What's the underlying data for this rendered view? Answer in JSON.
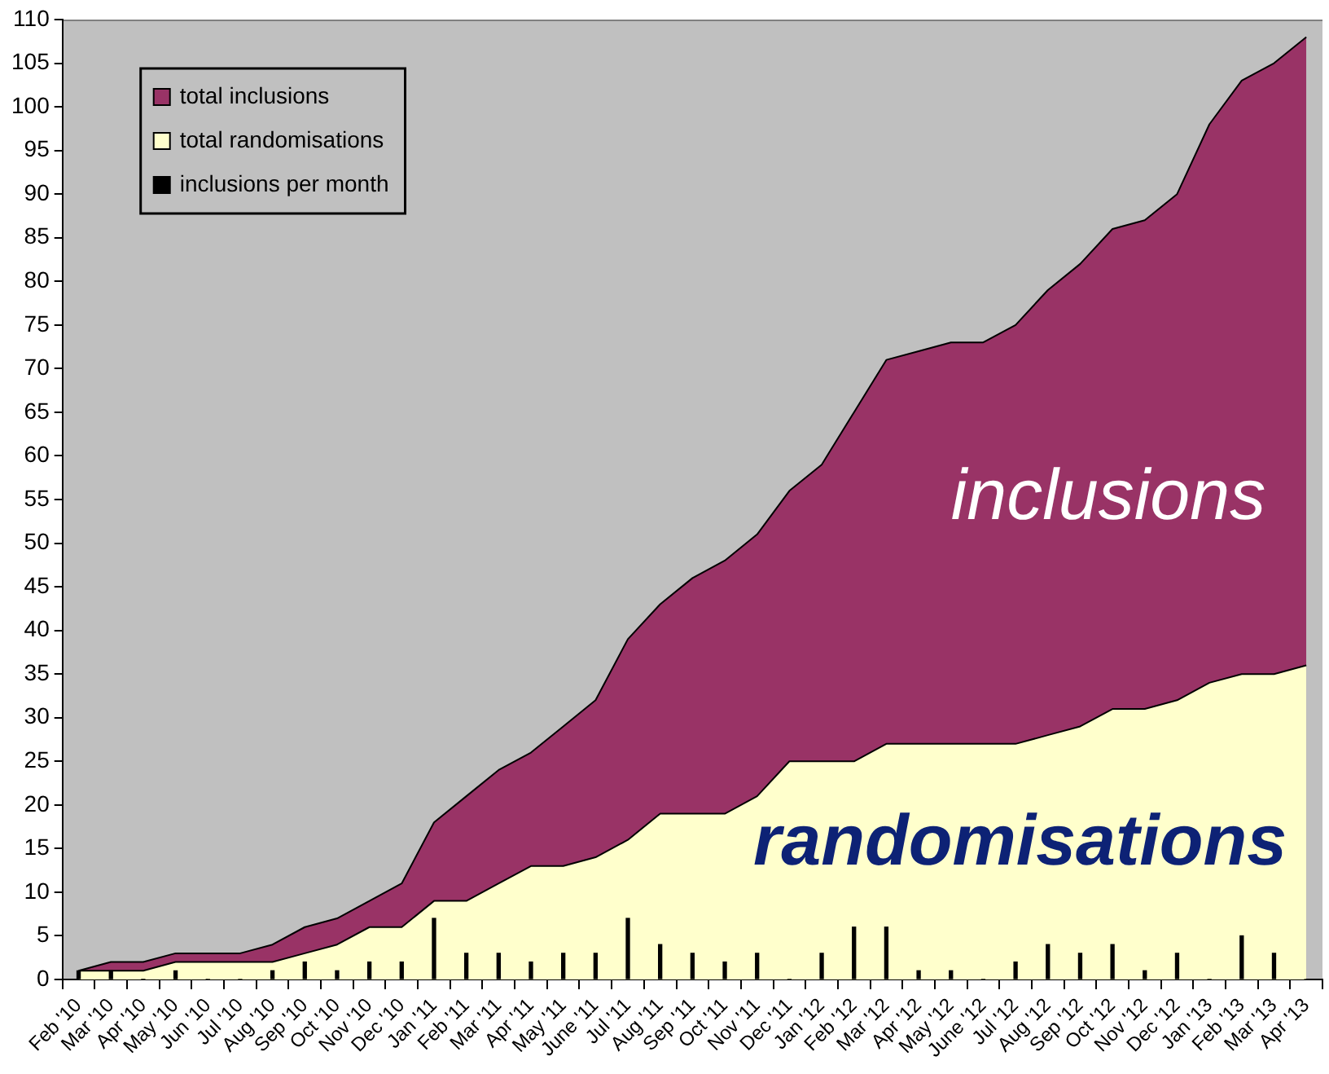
{
  "chart_data": {
    "type": "area",
    "categories": [
      "Feb '10",
      "Mar '10",
      "Apr '10",
      "May '10",
      "Jun '10",
      "Jul '10",
      "Aug '10",
      "Sep '10",
      "Oct '10",
      "Nov '10",
      "Dec '10",
      "Jan '11",
      "Feb '11",
      "Mar '11",
      "Apr '11",
      "May '11",
      "June '11",
      "Jul '11",
      "Aug '11",
      "Sep '11",
      "Oct '11",
      "Nov '11",
      "Dec '11",
      "Jan '12",
      "Feb '12",
      "Mar '12",
      "Apr '12",
      "May '12",
      "June '12",
      "Jul '12",
      "Aug '12",
      "Sep '12",
      "Oct '12",
      "Nov '12",
      "Dec '12",
      "Jan '13",
      "Feb '13",
      "Mar '13",
      "Apr '13"
    ],
    "series": [
      {
        "name": "total inclusions",
        "color": "#993366",
        "values": [
          1,
          2,
          2,
          3,
          3,
          3,
          4,
          6,
          7,
          9,
          11,
          18,
          21,
          24,
          26,
          29,
          32,
          39,
          43,
          46,
          48,
          51,
          56,
          59,
          65,
          71,
          72,
          73,
          73,
          75,
          79,
          82,
          86,
          87,
          90,
          98,
          103,
          105,
          108
        ]
      },
      {
        "name": "total randomisations",
        "color": "#ffffcc",
        "values": [
          1,
          1,
          1,
          2,
          2,
          2,
          2,
          3,
          4,
          6,
          6,
          9,
          9,
          11,
          13,
          13,
          14,
          16,
          19,
          19,
          19,
          21,
          25,
          25,
          25,
          27,
          27,
          27,
          27,
          27,
          28,
          29,
          31,
          31,
          32,
          34,
          35,
          35,
          36
        ]
      },
      {
        "name": "inclusions per month",
        "type": "bar",
        "color": "#000000",
        "values": [
          1,
          1,
          0,
          1,
          0,
          0,
          1,
          2,
          1,
          2,
          2,
          7,
          3,
          3,
          2,
          3,
          3,
          7,
          4,
          3,
          2,
          3,
          0,
          3,
          6,
          6,
          1,
          1,
          0,
          2,
          4,
          3,
          4,
          1,
          3,
          0,
          5,
          3,
          0
        ]
      }
    ],
    "ylim": [
      0,
      110
    ],
    "yticks": [
      0,
      5,
      10,
      15,
      20,
      25,
      30,
      35,
      40,
      45,
      50,
      55,
      60,
      65,
      70,
      75,
      80,
      85,
      90,
      95,
      100,
      105,
      110
    ],
    "legend": "top left",
    "marker": "none",
    "annotations": [
      "inclusions",
      "randomisations"
    ]
  }
}
